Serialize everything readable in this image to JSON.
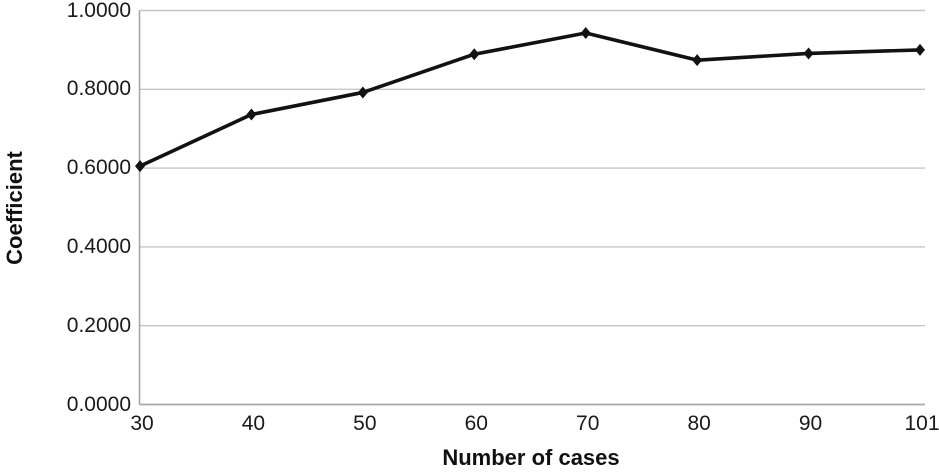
{
  "page": {
    "background": "#ffffff"
  },
  "chart_data": {
    "type": "line",
    "title": "",
    "xlabel": "Number of cases",
    "ylabel": "Coefficient",
    "categories": [
      "30",
      "40",
      "50",
      "60",
      "70",
      "80",
      "90",
      "101"
    ],
    "series": [
      {
        "name": "Coefficient",
        "color": "#121212",
        "marker": "diamond",
        "values": [
          0.605,
          0.736,
          0.792,
          0.889,
          0.943,
          0.874,
          0.891,
          0.9
        ]
      }
    ],
    "ylim": [
      0,
      1
    ],
    "yticks": [
      0,
      0.2,
      0.4,
      0.6,
      0.8,
      1
    ],
    "ytick_labels": [
      "0.0000",
      "0.2000",
      "0.4000",
      "0.6000",
      "0.8000",
      "1.0000"
    ],
    "grid": "horizontal-only",
    "legend": "none",
    "colors": {
      "line": "#121212",
      "gridline": "#c6c6c6",
      "axis": "#a6a6a6",
      "text": "#1a1a1a"
    }
  }
}
